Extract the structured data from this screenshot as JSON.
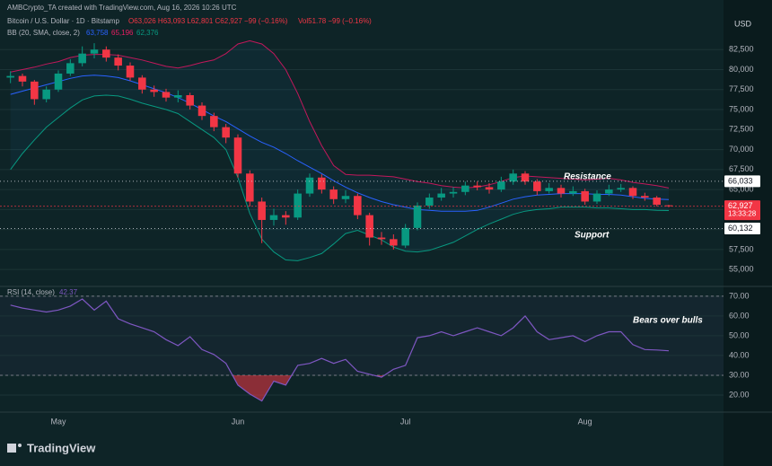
{
  "header": {
    "creator": "AMBCrypto_TA created with TradingView.com, Aug 16, 2026 10:26 UTC",
    "symbol": "Bitcoin / U.S. Dollar · 1D · Bitstamp",
    "ohlc": "O63,026 H63,093 L62,801 C62,927 −99 (−0.16%)",
    "volume": "Vol51.78 −99 (−0.16%)",
    "bb_label": "BB (20, SMA, close, 2)",
    "bb_values": [
      "63,758",
      "65,196",
      "62,376"
    ],
    "rsi_label": "RSI (14, close)",
    "rsi_value": "42.37",
    "currency": "USD",
    "brand": "TradingView"
  },
  "chart_data": [
    {
      "type": "candlestick",
      "categories": [
        null,
        null,
        null,
        null,
        "May",
        null,
        null,
        null,
        null,
        null,
        null,
        null,
        null,
        null,
        null,
        null,
        null,
        null,
        null,
        "Jun",
        null,
        null,
        null,
        null,
        null,
        null,
        null,
        null,
        null,
        null,
        null,
        null,
        null,
        "Jul",
        null,
        null,
        null,
        null,
        null,
        null,
        null,
        null,
        null,
        null,
        null,
        null,
        null,
        null,
        "Aug",
        null,
        null,
        null,
        null,
        null,
        null,
        null
      ],
      "open": [
        79000,
        79200,
        78500,
        76300,
        77500,
        79500,
        80800,
        82000,
        82500,
        81500,
        80500,
        79000,
        77500,
        77200,
        76500,
        76800,
        75500,
        74200,
        72800,
        71500,
        67000,
        63500,
        61200,
        61800,
        61500,
        64500,
        66500,
        65000,
        63800,
        64200,
        61800,
        59000,
        58800,
        58000,
        60200,
        63000,
        64000,
        64500,
        64700,
        65500,
        65300,
        65000,
        66000,
        67000,
        66000,
        64800,
        65200,
        64500,
        64800,
        63500,
        64500,
        65000,
        65200,
        64200,
        64000,
        63026
      ],
      "high": [
        79800,
        79500,
        78700,
        77900,
        79900,
        81300,
        82900,
        83300,
        82900,
        81900,
        80900,
        79300,
        78000,
        77600,
        77400,
        77100,
        75900,
        74600,
        73200,
        71900,
        67400,
        64000,
        62600,
        62300,
        65000,
        67000,
        66900,
        65400,
        64900,
        64500,
        62100,
        59700,
        59400,
        60700,
        63400,
        64500,
        65200,
        65300,
        66000,
        66000,
        65800,
        66600,
        67500,
        67300,
        66300,
        65800,
        65600,
        65400,
        65100,
        64900,
        65600,
        65700,
        65400,
        64600,
        64200,
        63093
      ],
      "low": [
        78300,
        77900,
        75600,
        75900,
        77200,
        79200,
        80400,
        81400,
        81000,
        79900,
        78600,
        77000,
        76600,
        76000,
        75900,
        75000,
        73700,
        72300,
        70800,
        66500,
        62900,
        58300,
        60500,
        60600,
        61200,
        64100,
        64500,
        63200,
        63300,
        61300,
        58000,
        58100,
        57500,
        57700,
        59900,
        62600,
        63600,
        64000,
        64300,
        64900,
        64500,
        64700,
        65600,
        65600,
        64300,
        64500,
        64000,
        64200,
        63100,
        63200,
        64200,
        64700,
        63800,
        63600,
        62900,
        62801
      ],
      "close": [
        79200,
        78500,
        76300,
        77500,
        79500,
        80800,
        82000,
        82500,
        81500,
        80500,
        79000,
        77500,
        77200,
        76500,
        76800,
        75500,
        74200,
        72800,
        71500,
        67000,
        63500,
        61200,
        61800,
        61500,
        64500,
        66500,
        65000,
        63800,
        64200,
        61800,
        59000,
        58800,
        58000,
        60200,
        63000,
        64000,
        64500,
        64700,
        65500,
        65300,
        65000,
        66000,
        67000,
        66000,
        64800,
        65200,
        64500,
        64800,
        63500,
        64500,
        65000,
        65200,
        64200,
        64000,
        63100,
        62927
      ],
      "up_color": "#089981",
      "down_color": "#f23645",
      "bb_upper": {
        "color": "#c2185b",
        "values": [
          79700,
          80000,
          80300,
          80700,
          81000,
          81500,
          81800,
          81900,
          81900,
          81800,
          81500,
          81200,
          80800,
          80400,
          80200,
          80500,
          80900,
          81200,
          82000,
          83200,
          83600,
          83200,
          82000,
          80000,
          77000,
          73500,
          70500,
          68000,
          66900,
          66800,
          66800,
          66700,
          66600,
          66300,
          66000,
          65800,
          65500,
          65300,
          65200,
          65300,
          65600,
          66000,
          66500,
          66700,
          66600,
          66500,
          66400,
          66300,
          66200,
          66300,
          66400,
          66200,
          65900,
          65700,
          65500,
          65196
        ]
      },
      "bb_basis": {
        "color": "#2962ff",
        "values": [
          76900,
          77300,
          77700,
          78100,
          78500,
          78900,
          79200,
          79300,
          79200,
          79000,
          78600,
          78100,
          77600,
          77100,
          76500,
          75800,
          75000,
          74200,
          73500,
          72600,
          71700,
          70900,
          70300,
          69500,
          68600,
          67800,
          67000,
          66100,
          65300,
          64600,
          64000,
          63500,
          63100,
          62800,
          62500,
          62400,
          62300,
          62300,
          62300,
          62400,
          62800,
          63300,
          63800,
          64100,
          64300,
          64400,
          64500,
          64500,
          64500,
          64400,
          64400,
          64300,
          64100,
          63900,
          63800,
          63758
        ]
      },
      "bb_lower": {
        "color": "#089981",
        "values": [
          67500,
          69500,
          71200,
          72800,
          74000,
          75200,
          76200,
          76700,
          76800,
          76700,
          76300,
          75800,
          75400,
          75000,
          74500,
          73500,
          72500,
          71500,
          70000,
          66500,
          62000,
          58800,
          57200,
          56200,
          56100,
          56500,
          57000,
          58200,
          59500,
          59900,
          59300,
          58700,
          57800,
          57300,
          57200,
          57400,
          57900,
          58400,
          59200,
          60000,
          60700,
          61300,
          61900,
          62300,
          62500,
          62600,
          62800,
          62800,
          62800,
          62700,
          62700,
          62600,
          62500,
          62500,
          62400,
          62376
        ]
      },
      "ylim": [
        53000,
        88700
      ],
      "yticks": [
        {
          "value": 55000,
          "label": "55,000"
        },
        {
          "value": 57500,
          "label": "57,500"
        },
        {
          "value": 60000,
          "label": "60,000"
        },
        {
          "value": 62500,
          "label": "62,500"
        },
        {
          "value": 65000,
          "label": "65,000"
        },
        {
          "value": 67500,
          "label": "67,500"
        },
        {
          "value": 70000,
          "label": "70,000"
        },
        {
          "value": 72500,
          "label": "72,500"
        },
        {
          "value": 75000,
          "label": "75,000"
        },
        {
          "value": 77500,
          "label": "77,500"
        },
        {
          "value": 80000,
          "label": "80,000"
        },
        {
          "value": 82500,
          "label": "82,500"
        }
      ],
      "grid": true,
      "price_lines": [
        {
          "value": 66033,
          "label": "66,033",
          "kind": "level"
        },
        {
          "value": 62927,
          "label": "62,927",
          "kind": "last"
        },
        {
          "value": 60132,
          "label": "60,132",
          "kind": "level"
        }
      ],
      "countdown": "13:33:28",
      "annotations": [
        "Resistance",
        "Support"
      ]
    },
    {
      "type": "line",
      "color": "#7e57c2",
      "values": [
        65.5,
        64,
        63,
        62,
        63,
        65,
        68.6,
        63,
        67.5,
        58.6,
        56,
        54,
        52,
        48,
        45,
        49.5,
        43,
        40.5,
        36,
        25,
        20.5,
        17,
        27,
        25,
        35,
        36,
        38.5,
        36,
        38,
        32,
        30.5,
        29,
        33,
        35,
        49,
        50,
        52,
        50,
        52,
        54,
        52,
        50,
        54,
        60,
        52,
        48,
        49,
        50,
        47,
        50,
        52,
        52,
        45.5,
        43,
        42.8,
        42.37
      ],
      "ylim": [
        11.8,
        74.5
      ],
      "yticks": [
        {
          "value": 20,
          "label": "20.00"
        },
        {
          "value": 30,
          "label": "30.00"
        },
        {
          "value": 40,
          "label": "40.00"
        },
        {
          "value": 50,
          "label": "50.00"
        },
        {
          "value": 60,
          "label": "60.00"
        },
        {
          "value": 70,
          "label": "70.00"
        }
      ],
      "levels": [
        70,
        30
      ],
      "grid": true,
      "annotations": [
        "Bears over bulls"
      ]
    }
  ]
}
